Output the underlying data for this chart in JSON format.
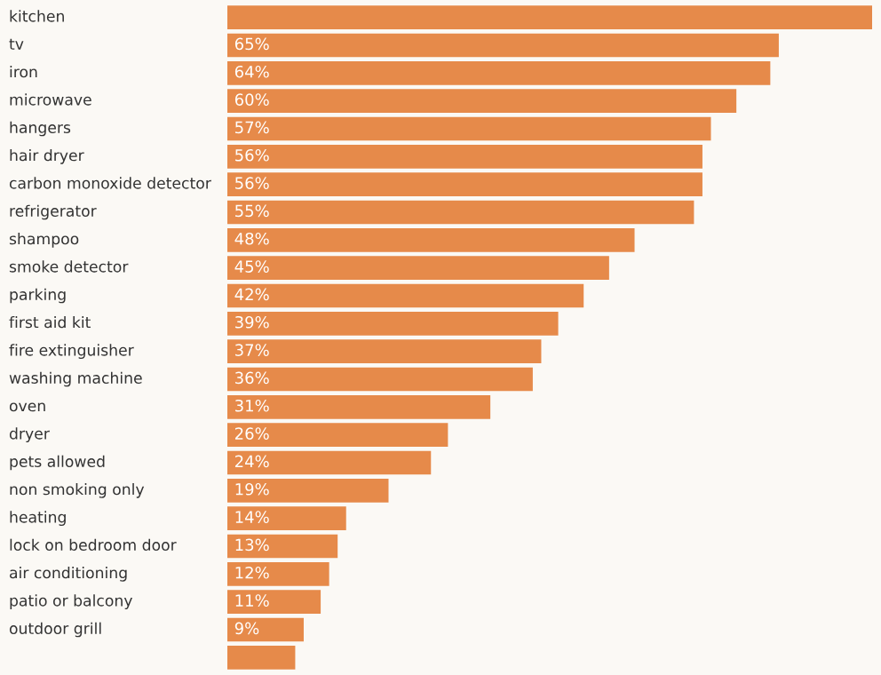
{
  "chart_data": {
    "type": "bar",
    "orientation": "horizontal",
    "color": "#e68a4a",
    "categories": [
      "kitchen",
      "tv",
      "iron",
      "microwave",
      "hangers",
      "hair dryer",
      "carbon monoxide detector",
      "refrigerator",
      "shampoo",
      "smoke detector",
      "parking",
      "first aid kit",
      "fire extinguisher",
      "washing machine",
      "oven",
      "dryer",
      "pets allowed",
      "non smoking only",
      "heating",
      "lock on bedroom door",
      "air conditioning",
      "patio or balcony",
      "outdoor grill",
      null
    ],
    "values": [
      76,
      65,
      64,
      60,
      57,
      56,
      56,
      55,
      48,
      45,
      42,
      39,
      37,
      36,
      31,
      26,
      24,
      19,
      14,
      13,
      12,
      11,
      9,
      8
    ],
    "value_labels": [
      null,
      "65%",
      "64%",
      "60%",
      "57%",
      "56%",
      "56%",
      "55%",
      "48%",
      "45%",
      "42%",
      "39%",
      "37%",
      "36%",
      "31%",
      "26%",
      "24%",
      "19%",
      "14%",
      "13%",
      "12%",
      "11%",
      "9%",
      null
    ]
  }
}
